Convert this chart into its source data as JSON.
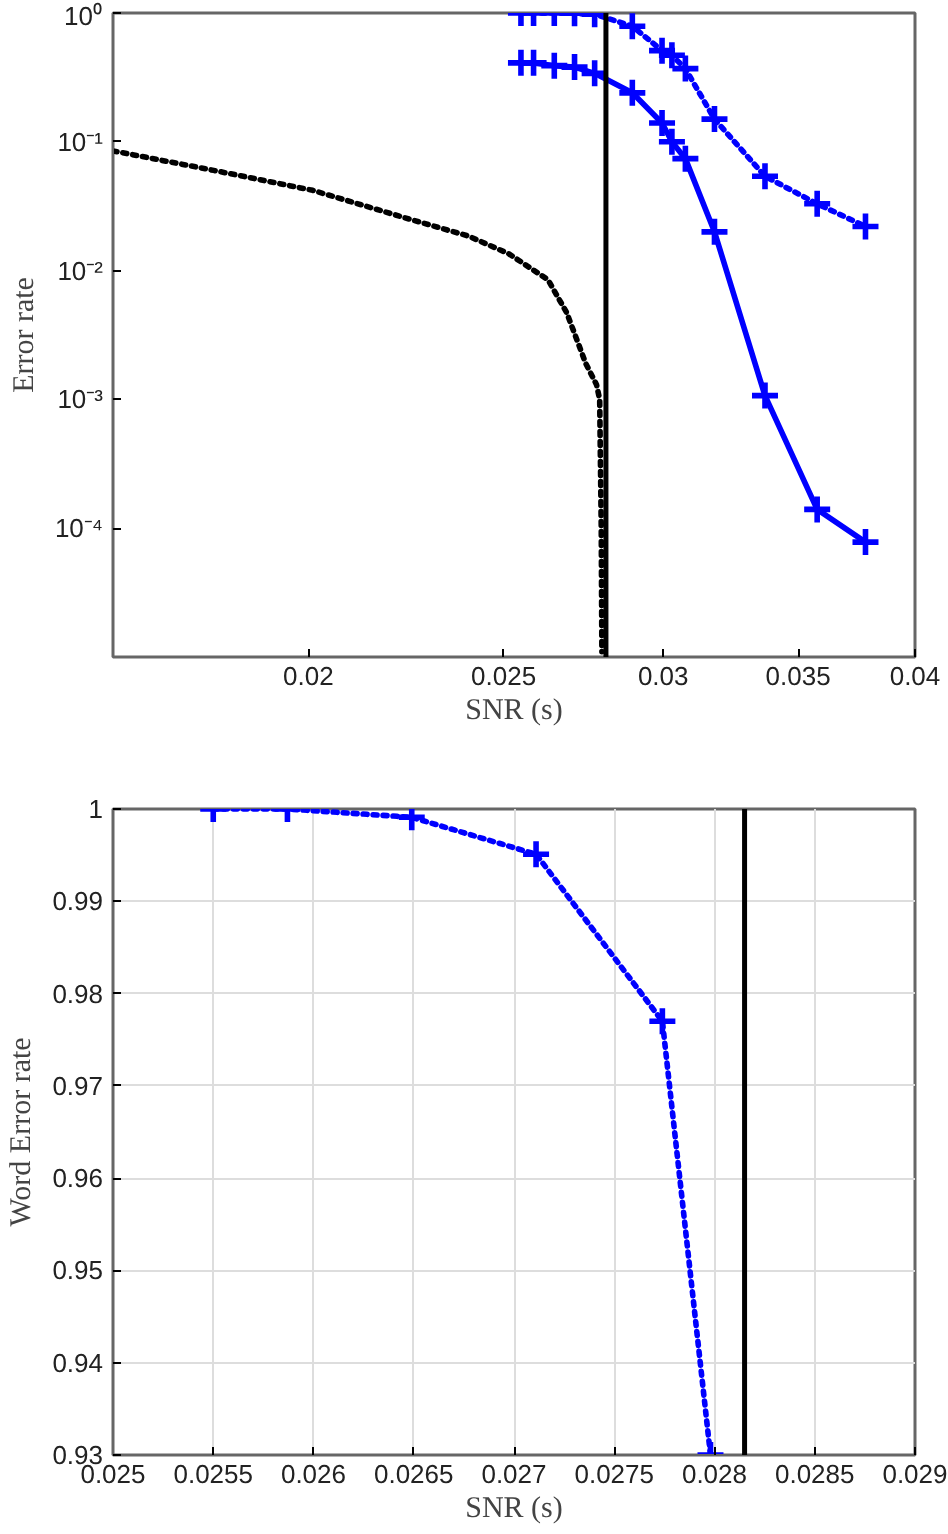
{
  "chart_data": [
    {
      "type": "line",
      "xlabel": "SNR (s)",
      "ylabel": "Error rate",
      "log": "xy",
      "grid": false,
      "xlim": [
        0.016,
        0.04
      ],
      "ylim": [
        1e-05,
        1
      ],
      "xticks": [
        0.02,
        0.025,
        0.03,
        0.035,
        0.04
      ],
      "yticks": [
        {
          "value": 0.0001,
          "label": "10⁻⁴"
        },
        {
          "value": 0.001,
          "label": "10⁻³"
        },
        {
          "value": 0.01,
          "label": "10⁻²"
        },
        {
          "value": 0.1,
          "label": "10⁻¹"
        },
        {
          "value": 1,
          "label": "10⁰"
        }
      ],
      "series": [
        {
          "color": "#0000ff",
          "marker": "cross",
          "line_style": "solid",
          "x": [
            0.0255,
            0.02587,
            0.02649,
            0.02711,
            0.02774,
            0.02896,
            0.02996,
            0.0303,
            0.03077,
            0.03181,
            0.0337,
            0.03577,
            0.0378
          ],
          "values": [
            0.41,
            0.41,
            0.39,
            0.38,
            0.34,
            0.24,
            0.14,
            0.1,
            0.074,
            0.02,
            0.00107,
            0.00014,
            7.8e-05
          ]
        },
        {
          "color": "#0000ff",
          "marker": "cross",
          "line_style": "dotted",
          "x": [
            0.0255,
            0.02587,
            0.02649,
            0.02711,
            0.02774,
            0.02896,
            0.02996,
            0.0303,
            0.03077,
            0.03181,
            0.0337,
            0.03577,
            0.0378
          ],
          "values": [
            1.0,
            1.0,
            0.999,
            0.995,
            0.977,
            0.79,
            0.51,
            0.47,
            0.37,
            0.15,
            0.054,
            0.033,
            0.022
          ]
        },
        {
          "color": "#000000",
          "marker": "none",
          "line_style": "dotted",
          "x": [
            0.016,
            0.01795,
            0.0201,
            0.02247,
            0.024,
            0.02515,
            0.0263,
            0.02687,
            0.02746,
            0.0278,
            0.0279,
            0.02795,
            0.02797
          ],
          "values": [
            0.085,
            0.06,
            0.042,
            0.025,
            0.0186,
            0.0135,
            0.0085,
            0.0047,
            0.0019,
            0.0013,
            0.001,
            0.0001,
            1.1e-05
          ]
        }
      ],
      "ref_lines": [
        {
          "axis": "x",
          "value": 0.0281,
          "color": "#000000"
        }
      ]
    },
    {
      "type": "line",
      "xlabel": "SNR (s)",
      "ylabel": "Word Error rate",
      "grid": true,
      "xlim": [
        0.025,
        0.029
      ],
      "ylim": [
        0.93,
        1
      ],
      "xticks": [
        0.025,
        0.0255,
        0.026,
        0.0265,
        0.027,
        0.0275,
        0.028,
        0.0285,
        0.029
      ],
      "yticks": [
        0.93,
        0.94,
        0.95,
        0.96,
        0.97,
        0.98,
        0.99,
        1
      ],
      "series": [
        {
          "color": "#0000ff",
          "marker": "cross",
          "line_style": "dotted",
          "x": [
            0.0255,
            0.02587,
            0.02649,
            0.02711,
            0.02774,
            0.02798
          ],
          "values": [
            1.0,
            1.0,
            0.9991,
            0.9951,
            0.977,
            0.93
          ]
        }
      ],
      "ref_lines": [
        {
          "axis": "x",
          "value": 0.02815,
          "color": "#000000"
        }
      ]
    }
  ]
}
